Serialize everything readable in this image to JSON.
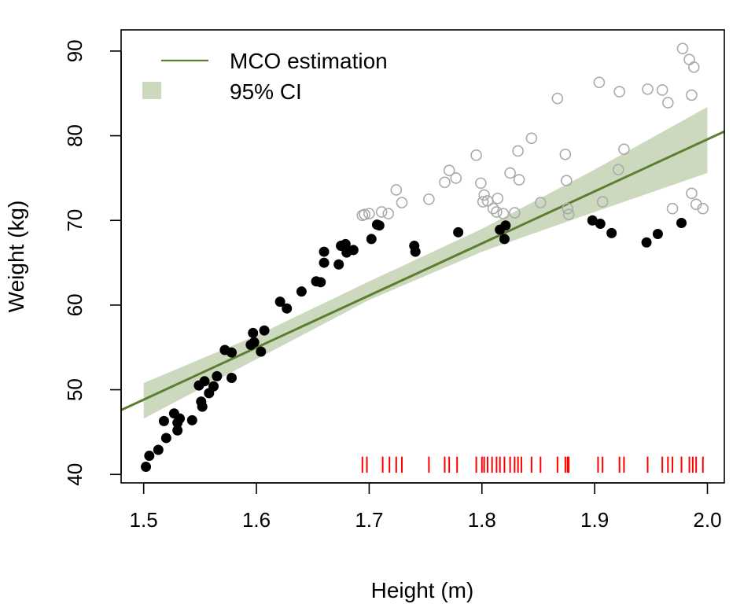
{
  "chart_data": {
    "type": "scatter",
    "title": "",
    "xlabel": "Height (m)",
    "ylabel": "Weight (kg)",
    "xlim": [
      1.48,
      2.015
    ],
    "ylim": [
      39,
      92.5
    ],
    "xticks": [
      "1.5",
      "1.6",
      "1.7",
      "1.8",
      "1.9",
      "2.0"
    ],
    "yticks": [
      "40",
      "50",
      "60",
      "70",
      "80",
      "90"
    ],
    "grid": false,
    "legend": {
      "position": "top-left",
      "entries": [
        {
          "label": "MCO estimation",
          "kind": "line",
          "color": "#5b7f2e"
        },
        {
          "label": "95% CI",
          "kind": "fill",
          "color": "#cdd9bf"
        }
      ]
    },
    "colors": {
      "fit_line": "#5b7f2e",
      "ci_band": "#cdd9bf",
      "filled_points": "#000000",
      "open_points": "#aaaaaa",
      "rug": "#ff0000"
    },
    "fit_line": {
      "x": [
        1.48,
        2.015
      ],
      "y": [
        47.6,
        80.5
      ]
    },
    "ci_band": {
      "x": [
        1.5,
        1.6,
        1.7,
        1.8,
        1.9,
        2.0
      ],
      "lower": [
        46.6,
        53.6,
        60.6,
        66.3,
        71.0,
        75.6
      ],
      "upper": [
        50.8,
        56.4,
        62.8,
        69.0,
        76.0,
        83.4
      ]
    },
    "series": [
      {
        "marker": "filled-circle",
        "points": [
          [
            1.502,
            40.9
          ],
          [
            1.505,
            42.2
          ],
          [
            1.513,
            42.9
          ],
          [
            1.518,
            46.3
          ],
          [
            1.52,
            44.3
          ],
          [
            1.527,
            47.2
          ],
          [
            1.53,
            45.2
          ],
          [
            1.53,
            46.1
          ],
          [
            1.532,
            46.6
          ],
          [
            1.543,
            46.4
          ],
          [
            1.549,
            50.5
          ],
          [
            1.551,
            48.6
          ],
          [
            1.552,
            48.0
          ],
          [
            1.554,
            51.0
          ],
          [
            1.558,
            49.6
          ],
          [
            1.562,
            50.4
          ],
          [
            1.565,
            51.6
          ],
          [
            1.572,
            54.7
          ],
          [
            1.578,
            51.4
          ],
          [
            1.578,
            54.4
          ],
          [
            1.595,
            55.3
          ],
          [
            1.597,
            56.7
          ],
          [
            1.598,
            55.6
          ],
          [
            1.604,
            54.5
          ],
          [
            1.607,
            57.0
          ],
          [
            1.621,
            60.4
          ],
          [
            1.627,
            59.6
          ],
          [
            1.64,
            61.6
          ],
          [
            1.653,
            62.8
          ],
          [
            1.657,
            62.7
          ],
          [
            1.66,
            65.0
          ],
          [
            1.66,
            66.3
          ],
          [
            1.673,
            64.8
          ],
          [
            1.675,
            67.0
          ],
          [
            1.679,
            67.2
          ],
          [
            1.68,
            66.2
          ],
          [
            1.686,
            66.5
          ],
          [
            1.702,
            67.8
          ],
          [
            1.707,
            69.5
          ],
          [
            1.709,
            69.4
          ],
          [
            1.74,
            67.0
          ],
          [
            1.741,
            66.3
          ],
          [
            1.779,
            68.6
          ],
          [
            1.816,
            68.9
          ],
          [
            1.82,
            67.8
          ],
          [
            1.821,
            69.4
          ],
          [
            1.898,
            70.0
          ],
          [
            1.905,
            69.6
          ],
          [
            1.915,
            68.5
          ],
          [
            1.946,
            67.4
          ],
          [
            1.956,
            68.4
          ],
          [
            1.977,
            69.7
          ]
        ]
      },
      {
        "marker": "open-circle",
        "points": [
          [
            1.694,
            70.6
          ],
          [
            1.696,
            70.7
          ],
          [
            1.7,
            70.8
          ],
          [
            1.711,
            71.0
          ],
          [
            1.717,
            70.8
          ],
          [
            1.724,
            73.6
          ],
          [
            1.729,
            72.1
          ],
          [
            1.753,
            72.5
          ],
          [
            1.767,
            74.5
          ],
          [
            1.771,
            75.9
          ],
          [
            1.777,
            75.0
          ],
          [
            1.795,
            77.7
          ],
          [
            1.799,
            74.4
          ],
          [
            1.801,
            72.2
          ],
          [
            1.802,
            73.0
          ],
          [
            1.805,
            72.3
          ],
          [
            1.81,
            71.4
          ],
          [
            1.813,
            71.0
          ],
          [
            1.814,
            72.6
          ],
          [
            1.819,
            70.8
          ],
          [
            1.825,
            75.6
          ],
          [
            1.829,
            70.9
          ],
          [
            1.832,
            78.2
          ],
          [
            1.833,
            74.8
          ],
          [
            1.844,
            79.7
          ],
          [
            1.852,
            72.1
          ],
          [
            1.867,
            84.4
          ],
          [
            1.874,
            77.8
          ],
          [
            1.875,
            74.7
          ],
          [
            1.876,
            71.4
          ],
          [
            1.877,
            70.7
          ],
          [
            1.904,
            86.3
          ],
          [
            1.907,
            72.2
          ],
          [
            1.922,
            85.2
          ],
          [
            1.921,
            76.0
          ],
          [
            1.926,
            78.4
          ],
          [
            1.947,
            85.5
          ],
          [
            1.96,
            85.4
          ],
          [
            1.965,
            83.9
          ],
          [
            1.969,
            71.4
          ],
          [
            1.978,
            90.3
          ],
          [
            1.984,
            89.0
          ],
          [
            1.986,
            73.2
          ],
          [
            1.988,
            88.1
          ],
          [
            1.986,
            84.8
          ],
          [
            1.99,
            71.9
          ],
          [
            1.996,
            71.4
          ]
        ]
      }
    ],
    "rug": {
      "y_range": [
        40.2,
        42.1
      ],
      "x": [
        1.694,
        1.698,
        1.712,
        1.718,
        1.724,
        1.729,
        1.753,
        1.767,
        1.771,
        1.778,
        1.795,
        1.8,
        1.802,
        1.805,
        1.809,
        1.813,
        1.816,
        1.82,
        1.825,
        1.829,
        1.832,
        1.835,
        1.844,
        1.852,
        1.867,
        1.874,
        1.876,
        1.877,
        1.903,
        1.907,
        1.922,
        1.926,
        1.947,
        1.96,
        1.965,
        1.969,
        1.977,
        1.984,
        1.987,
        1.99,
        1.996
      ]
    }
  }
}
